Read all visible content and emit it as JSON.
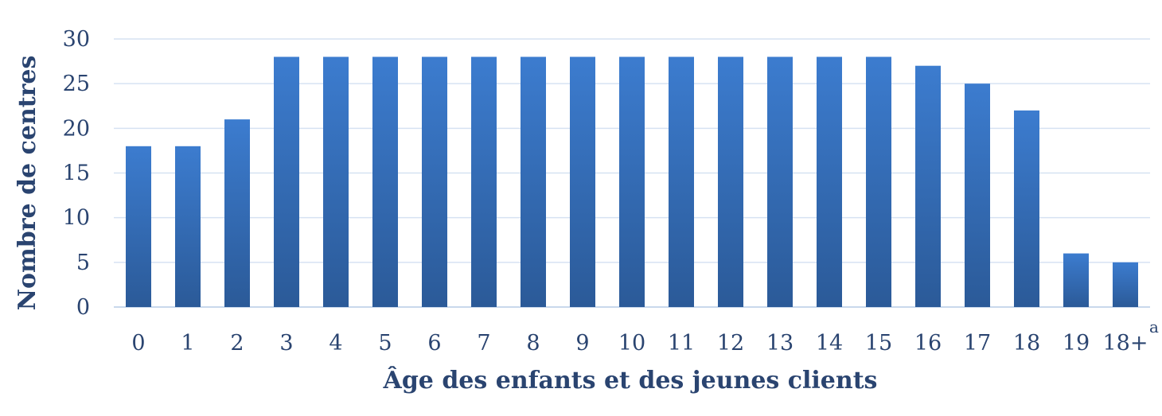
{
  "chart_data": {
    "type": "bar",
    "xlabel": "Âge des enfants et des jeunes clients",
    "ylabel": "Nombre de centres",
    "ylim": [
      0,
      30
    ],
    "yticks": [
      0,
      5,
      10,
      15,
      20,
      25,
      30
    ],
    "grid": true,
    "legend": "none",
    "bar_color": "#3a78c9",
    "categories": [
      "0",
      "1",
      "2",
      "3",
      "4",
      "5",
      "6",
      "7",
      "8",
      "9",
      "10",
      "11",
      "12",
      "13",
      "14",
      "15",
      "16",
      "17",
      "18",
      "19",
      "18+"
    ],
    "last_category_superscript": "a",
    "values": [
      18,
      18,
      21,
      28,
      28,
      28,
      28,
      28,
      28,
      28,
      28,
      28,
      28,
      28,
      28,
      28,
      27,
      25,
      22,
      6,
      5
    ]
  }
}
